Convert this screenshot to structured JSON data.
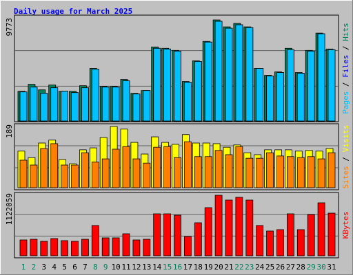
{
  "chart_data": [
    {
      "type": "bar",
      "title": "Daily usage for March 2025",
      "categories": [
        "1",
        "2",
        "3",
        "4",
        "5",
        "6",
        "7",
        "8",
        "9",
        "10",
        "11",
        "12",
        "13",
        "14",
        "15",
        "16",
        "17",
        "18",
        "19",
        "20",
        "21",
        "22",
        "23",
        "24",
        "25",
        "26",
        "27",
        "28",
        "29",
        "30",
        "31"
      ],
      "weekend_days": [
        0,
        1,
        7,
        8,
        14,
        15,
        21,
        22,
        28,
        29
      ],
      "weekend_color": "#00805c",
      "ylim": [
        0,
        9773
      ],
      "yticks": [
        9773
      ],
      "separator": "/",
      "series": [
        {
          "name": "Hits",
          "color": "#00805c",
          "values": [
            2878,
            3548,
            3012,
            3481,
            2878,
            2878,
            3414,
            5087,
            3347,
            3347,
            4016,
            2678,
            2945,
            7162,
            7029,
            6828,
            3816,
            5824,
            7698,
            9773,
            9104,
            9438,
            9104,
            5087,
            4418,
            4753,
            7029,
            4686,
            6828,
            8501,
            6962
          ]
        },
        {
          "name": "Files",
          "color": "#0000ff",
          "values": [
            2811,
            3280,
            2678,
            3213,
            2878,
            2745,
            3213,
            5020,
            3280,
            3280,
            3882,
            2611,
            2945,
            7029,
            6962,
            6761,
            3749,
            5757,
            7631,
            9639,
            8970,
            9305,
            9037,
            5087,
            4351,
            4686,
            6895,
            4619,
            6761,
            8434,
            6895
          ]
        },
        {
          "name": "Pages",
          "color": "#00c0ff",
          "values": [
            2811,
            3280,
            2678,
            3213,
            2878,
            2745,
            3213,
            5020,
            3280,
            3280,
            3882,
            2611,
            2945,
            7029,
            6962,
            6761,
            3749,
            5757,
            7631,
            9639,
            8970,
            9305,
            9037,
            5087,
            4351,
            4686,
            6895,
            4619,
            6761,
            8434,
            6895
          ]
        }
      ]
    },
    {
      "type": "bar",
      "ylim": [
        0,
        189
      ],
      "yticks": [
        189
      ],
      "separator": "/",
      "series": [
        {
          "name": "Visits",
          "color": "#ffff00",
          "values": [
            113,
            93,
            138,
            147,
            87,
            74,
            117,
            123,
            155,
            189,
            181,
            140,
            104,
            157,
            140,
            134,
            164,
            138,
            138,
            136,
            125,
            132,
            108,
            102,
            117,
            117,
            117,
            113,
            115,
            113,
            121
          ]
        },
        {
          "name": "Sites",
          "color": "#ff8000",
          "values": [
            85,
            70,
            121,
            136,
            70,
            70,
            108,
            79,
            89,
            119,
            127,
            89,
            76,
            125,
            127,
            93,
            142,
            96,
            96,
            115,
            102,
            127,
            91,
            91,
            108,
            98,
            96,
            93,
            96,
            89,
            108
          ]
        }
      ]
    },
    {
      "type": "bar",
      "ylim": [
        0,
        1122059
      ],
      "yticks": [
        1122059
      ],
      "series": [
        {
          "name": "KBytes",
          "color": "#ff0000",
          "values": [
            293273,
            306024,
            267771,
            318775,
            280522,
            267771,
            306024,
            561044,
            331526,
            331526,
            408032,
            293273,
            306024,
            777811,
            777811,
            752309,
            357028,
            612048,
            892570,
            1122059,
            1032831,
            1083835,
            1032831,
            561044,
            459036,
            484538,
            777811,
            484538,
            765060,
            981827,
            790562
          ]
        }
      ]
    }
  ]
}
